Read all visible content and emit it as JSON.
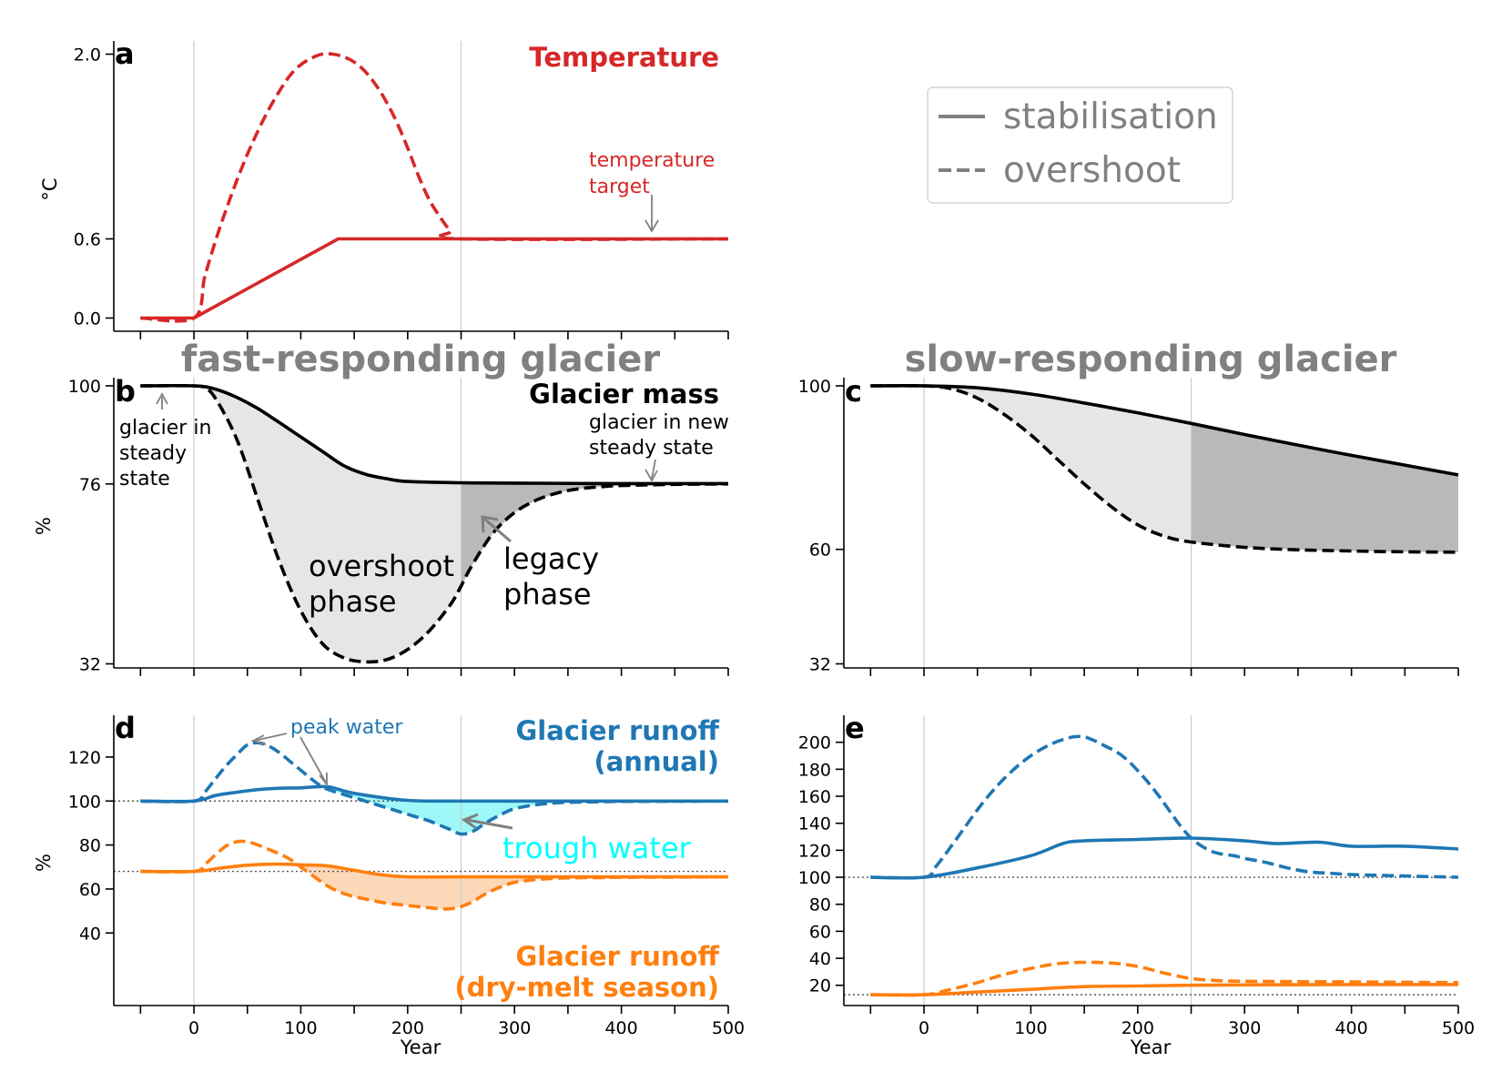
{
  "colors": {
    "temperature": "#d62728",
    "runoff_annual": "#1f77b4",
    "runoff_drymelt": "#ff7f0e",
    "trough_fill": "#9ff8f8",
    "trough_text": "#00ffff",
    "drymelt_fill": "#fdd8b8",
    "overshoot_fill": "#e6e6e6",
    "legacy_fill": "#b9b9b9",
    "axis_gray": "#808080",
    "grid_gray": "#cccccc"
  },
  "column_titles": {
    "fast": "fast-responding glacier",
    "slow": "slow-responding glacier"
  },
  "legend": {
    "placement": "top-right",
    "items": [
      {
        "label": "stabilisation",
        "style": "solid"
      },
      {
        "label": "overshoot",
        "style": "dashed"
      }
    ]
  },
  "annotations": {
    "temp_target": [
      "temperature",
      "target"
    ],
    "steady_state": [
      "glacier in",
      "steady",
      "state"
    ],
    "new_steady_state": [
      "glacier in new",
      "steady state"
    ],
    "overshoot_phase": [
      "overshoot",
      "phase"
    ],
    "legacy_phase": [
      "legacy",
      "phase"
    ],
    "peak_water": "peak water",
    "trough_water": "trough water"
  },
  "chart_data": [
    {
      "panel": "a",
      "type": "line",
      "title": "Temperature",
      "xlabel": "",
      "ylabel": "°C",
      "xlim": [
        -75,
        500
      ],
      "ylim": [
        -0.1,
        2.1
      ],
      "yticks": [
        0.0,
        0.6,
        2.0
      ],
      "ytick_labels": [
        "0.0",
        "0.6",
        "2.0"
      ],
      "xticks": [
        -50,
        0,
        50,
        100,
        150,
        200,
        250,
        300,
        350,
        400,
        450,
        500
      ],
      "vlines": [
        0,
        250
      ],
      "series": [
        {
          "style": "solid",
          "x": [
            -50,
            0,
            135,
            500
          ],
          "y": [
            0.0,
            0.0,
            0.6,
            0.6
          ]
        },
        {
          "style": "dashed",
          "x": [
            -50,
            0,
            10,
            20,
            30,
            40,
            50,
            60,
            70,
            80,
            90,
            100,
            110,
            120,
            130,
            140,
            150,
            160,
            170,
            180,
            190,
            200,
            210,
            220,
            230,
            240,
            250,
            500
          ],
          "y": [
            0.0,
            0.0,
            0.31,
            0.58,
            0.82,
            1.04,
            1.24,
            1.42,
            1.58,
            1.72,
            1.84,
            1.92,
            1.97,
            2.0,
            2.0,
            1.98,
            1.94,
            1.87,
            1.77,
            1.64,
            1.48,
            1.29,
            1.08,
            0.9,
            0.77,
            0.66,
            0.6,
            0.6
          ]
        }
      ]
    },
    {
      "panel": "b",
      "type": "line",
      "title": "Glacier mass",
      "xlabel": "",
      "ylabel": "%",
      "xlim": [
        -75,
        500
      ],
      "ylim": [
        31,
        102
      ],
      "yticks": [
        32,
        76,
        100
      ],
      "ytick_labels": [
        "32",
        "76",
        "100"
      ],
      "xticks": [
        -50,
        0,
        50,
        100,
        150,
        200,
        250,
        300,
        350,
        400,
        450,
        500
      ],
      "vlines": [
        0,
        250
      ],
      "shaded_regions": [
        {
          "name": "overshoot phase",
          "x_range": [
            0,
            250
          ]
        },
        {
          "name": "legacy phase",
          "x_range": [
            250,
            500
          ]
        }
      ],
      "series": [
        {
          "style": "solid",
          "x": [
            -50,
            0,
            20,
            40,
            60,
            80,
            100,
            120,
            140,
            160,
            180,
            200,
            250,
            300,
            400,
            500
          ],
          "y": [
            100,
            100,
            99.2,
            97.2,
            94.4,
            91.0,
            87.5,
            84.0,
            80.5,
            78.4,
            77.3,
            76.6,
            76.3,
            76.2,
            76.1,
            76.1
          ]
        },
        {
          "style": "dashed",
          "x": [
            -50,
            0,
            10,
            20,
            40,
            60,
            80,
            100,
            120,
            140,
            160,
            180,
            200,
            220,
            240,
            250,
            260,
            280,
            300,
            320,
            340,
            360,
            380,
            400,
            450,
            500
          ],
          "y": [
            100,
            100,
            99.5,
            97.0,
            87.0,
            72.0,
            57.0,
            45.0,
            37.0,
            33.5,
            32.5,
            33.0,
            35.5,
            40.0,
            46.5,
            51.0,
            56.0,
            64.0,
            69.0,
            72.0,
            73.8,
            74.8,
            75.3,
            75.6,
            75.9,
            76.0
          ]
        }
      ]
    },
    {
      "panel": "c",
      "type": "line",
      "title": "",
      "xlabel": "",
      "ylabel": "",
      "xlim": [
        -75,
        500
      ],
      "ylim": [
        31,
        102
      ],
      "yticks": [
        32,
        60,
        100
      ],
      "ytick_labels": [
        "32",
        "60",
        "100"
      ],
      "xticks": [
        -50,
        0,
        50,
        100,
        150,
        200,
        250,
        300,
        350,
        400,
        450,
        500
      ],
      "vlines": [
        0,
        250
      ],
      "shaded_regions": [
        {
          "name": "overshoot phase",
          "x_range": [
            0,
            250
          ]
        },
        {
          "name": "legacy phase",
          "x_range": [
            250,
            500
          ]
        }
      ],
      "series": [
        {
          "style": "solid",
          "x": [
            -50,
            0,
            50,
            100,
            150,
            200,
            250,
            300,
            350,
            400,
            450,
            500
          ],
          "y": [
            100,
            100,
            99.5,
            98.0,
            95.8,
            93.4,
            90.8,
            88.1,
            85.5,
            83.0,
            80.6,
            78.2
          ]
        },
        {
          "style": "dashed",
          "x": [
            -50,
            0,
            25,
            50,
            75,
            100,
            125,
            150,
            175,
            200,
            225,
            250,
            300,
            350,
            400,
            450,
            500
          ],
          "y": [
            100,
            100,
            99.3,
            97.0,
            93.0,
            88.0,
            82.0,
            76.0,
            70.5,
            66.0,
            63.2,
            61.8,
            60.5,
            59.9,
            59.6,
            59.4,
            59.3
          ]
        }
      ]
    },
    {
      "panel": "d",
      "type": "line",
      "title": "Glacier runoff (annual) / Glacier runoff (dry-melt season)",
      "xlabel": "Year",
      "ylabel": "%",
      "xlim": [
        -75,
        500
      ],
      "ylim": [
        7,
        139
      ],
      "yticks": [
        40,
        60,
        80,
        100,
        120
      ],
      "ytick_labels": [
        "40",
        "60",
        "80",
        "100",
        "120"
      ],
      "xticks": [
        -50,
        0,
        50,
        100,
        150,
        200,
        250,
        300,
        350,
        400,
        450,
        500
      ],
      "xtick_labels": [
        "",
        "0",
        "",
        "100",
        "",
        "200",
        "",
        "300",
        "",
        "400",
        "",
        "500"
      ],
      "vlines": [
        0,
        250
      ],
      "hlines": [
        100,
        68
      ],
      "titles": [
        {
          "lines": [
            "Glacier runoff",
            "(annual)"
          ],
          "color_key": "runoff_annual"
        },
        {
          "lines": [
            "Glacier runoff",
            "(dry-melt season)"
          ],
          "color_key": "runoff_drymelt"
        }
      ],
      "series": [
        {
          "group": "annual",
          "style": "solid",
          "x": [
            -50,
            0,
            20,
            40,
            60,
            80,
            100,
            125,
            150,
            200,
            250,
            300,
            400,
            500
          ],
          "y": [
            100,
            100,
            102.5,
            104.0,
            105.2,
            105.8,
            106.0,
            106.5,
            103.5,
            100.3,
            100.0,
            100.0,
            100.0,
            100.0
          ]
        },
        {
          "group": "annual",
          "style": "dashed",
          "x": [
            -50,
            0,
            10,
            20,
            30,
            40,
            50,
            60,
            70,
            80,
            90,
            100,
            110,
            120,
            130,
            140,
            150,
            160,
            170,
            180,
            190,
            200,
            210,
            220,
            230,
            240,
            250,
            260,
            270,
            280,
            290,
            300,
            320,
            340,
            360,
            380,
            400,
            450,
            500
          ],
          "y": [
            100,
            100,
            104,
            110,
            116,
            121,
            125.5,
            126.5,
            125,
            122,
            118,
            114,
            110,
            106.5,
            104.5,
            103,
            101.5,
            100,
            98.5,
            97,
            95.5,
            94,
            92.5,
            91,
            89,
            87,
            85,
            86,
            89,
            92,
            94.5,
            96.5,
            98.3,
            99.2,
            99.5,
            99.7,
            99.8,
            99.9,
            100
          ]
        },
        {
          "group": "dry-melt",
          "style": "solid",
          "x": [
            -50,
            0,
            25,
            50,
            75,
            100,
            125,
            150,
            175,
            200,
            250,
            300,
            400,
            500
          ],
          "y": [
            68,
            68,
            69.5,
            70.8,
            71.3,
            71.0,
            70.5,
            68.5,
            66.5,
            65.5,
            65.5,
            65.5,
            65.5,
            65.5
          ]
        },
        {
          "group": "dry-melt",
          "style": "dashed",
          "x": [
            -50,
            0,
            10,
            20,
            30,
            40,
            50,
            60,
            70,
            80,
            90,
            100,
            110,
            120,
            130,
            140,
            150,
            160,
            170,
            180,
            190,
            200,
            210,
            220,
            230,
            240,
            250,
            260,
            270,
            280,
            290,
            300,
            320,
            340,
            360,
            380,
            400,
            450,
            500
          ],
          "y": [
            68,
            68,
            71,
            75.5,
            79.5,
            81.5,
            81.5,
            80,
            78,
            76,
            73.5,
            70,
            66.5,
            63,
            60,
            58,
            56.5,
            55.5,
            54.5,
            53.5,
            53,
            52.5,
            52,
            51.5,
            51,
            51,
            52,
            54,
            57,
            59.5,
            61.5,
            63,
            64.3,
            64.9,
            65.1,
            65.2,
            65.3,
            65.4,
            65.5
          ]
        }
      ]
    },
    {
      "panel": "e",
      "type": "line",
      "title": "",
      "xlabel": "Year",
      "ylabel": "",
      "xlim": [
        -75,
        500
      ],
      "ylim": [
        5,
        220
      ],
      "yticks": [
        20,
        40,
        60,
        80,
        100,
        120,
        140,
        160,
        180,
        200
      ],
      "ytick_labels": [
        "20",
        "40",
        "60",
        "80",
        "100",
        "120",
        "140",
        "160",
        "180",
        "200"
      ],
      "xticks": [
        -50,
        0,
        50,
        100,
        150,
        200,
        250,
        300,
        350,
        400,
        450,
        500
      ],
      "xtick_labels": [
        "",
        "0",
        "",
        "100",
        "",
        "200",
        "",
        "300",
        "",
        "400",
        "",
        "500"
      ],
      "vlines": [
        0,
        250
      ],
      "hlines": [
        100,
        13
      ],
      "series": [
        {
          "group": "annual",
          "style": "solid",
          "x": [
            -50,
            0,
            50,
            100,
            130,
            150,
            200,
            250,
            300,
            330,
            370,
            400,
            450,
            500
          ],
          "y": [
            100,
            100,
            107,
            116,
            125,
            127,
            128,
            129,
            127,
            125,
            126,
            123,
            123,
            121
          ]
        },
        {
          "group": "annual",
          "style": "dashed",
          "x": [
            -50,
            0,
            10,
            20,
            30,
            40,
            50,
            60,
            70,
            80,
            90,
            100,
            110,
            120,
            130,
            140,
            150,
            160,
            170,
            180,
            190,
            200,
            210,
            220,
            230,
            240,
            250,
            260,
            270,
            280,
            290,
            300,
            320,
            340,
            360,
            380,
            400,
            450,
            500
          ],
          "y": [
            100,
            100,
            107,
            117,
            128,
            139,
            150,
            160,
            169,
            177,
            184,
            190,
            195,
            199,
            202,
            204,
            204,
            201,
            197,
            193,
            187,
            179,
            170,
            160,
            149,
            138,
            129,
            123,
            119,
            117,
            116,
            114,
            111,
            107,
            104,
            103,
            102,
            101,
            100
          ]
        },
        {
          "group": "dry-melt",
          "style": "solid",
          "x": [
            -50,
            0,
            50,
            100,
            150,
            200,
            250,
            300,
            400,
            500
          ],
          "y": [
            13,
            13,
            15,
            17,
            19,
            19.5,
            20,
            20.3,
            20.5,
            20.6
          ]
        },
        {
          "group": "dry-melt",
          "style": "dashed",
          "x": [
            -50,
            0,
            25,
            50,
            75,
            100,
            125,
            150,
            175,
            200,
            225,
            250,
            275,
            300,
            400,
            500
          ],
          "y": [
            13,
            13,
            17,
            22,
            28,
            32.5,
            36,
            37,
            36.5,
            34,
            29,
            25,
            23.5,
            23,
            22.5,
            22
          ]
        }
      ]
    }
  ]
}
